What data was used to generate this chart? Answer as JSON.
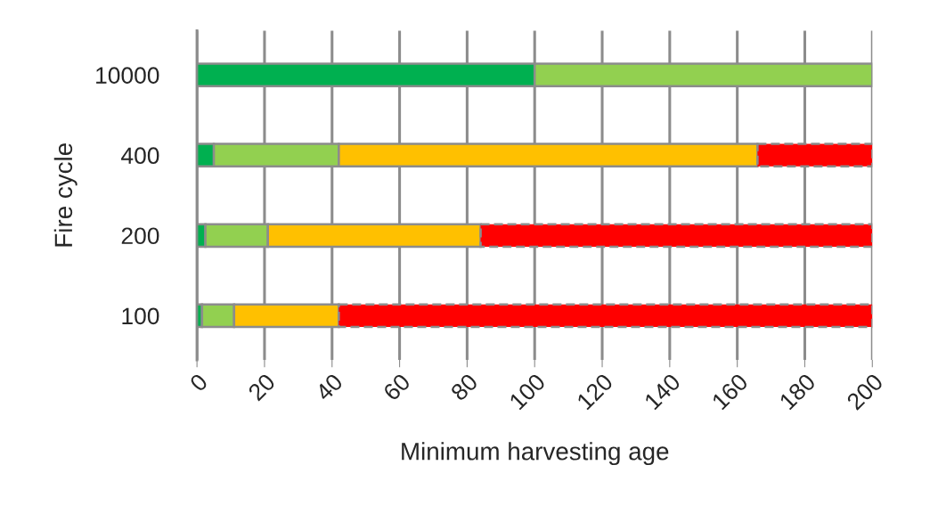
{
  "chart_data": {
    "type": "bar",
    "orientation": "horizontal",
    "stacked": true,
    "xlabel": "Minimum harvesting age",
    "ylabel": "Fire cycle",
    "categories": [
      "10000",
      "400",
      "200",
      "100"
    ],
    "series": [
      {
        "color": "#00b050",
        "values": [
          100,
          5,
          2.5,
          1.5
        ]
      },
      {
        "color": "#92d050",
        "values": [
          100,
          37,
          18.5,
          9.5
        ]
      },
      {
        "color": "#ffc000",
        "values": [
          null,
          124,
          63,
          31
        ]
      },
      {
        "color": "#ff0000",
        "values": [
          null,
          34,
          116,
          158
        ],
        "line_style": "dashed"
      }
    ],
    "xlim": [
      0,
      200
    ],
    "xticks": [
      0,
      20,
      40,
      60,
      80,
      100,
      120,
      140,
      160,
      180,
      200
    ],
    "grid": "x"
  }
}
